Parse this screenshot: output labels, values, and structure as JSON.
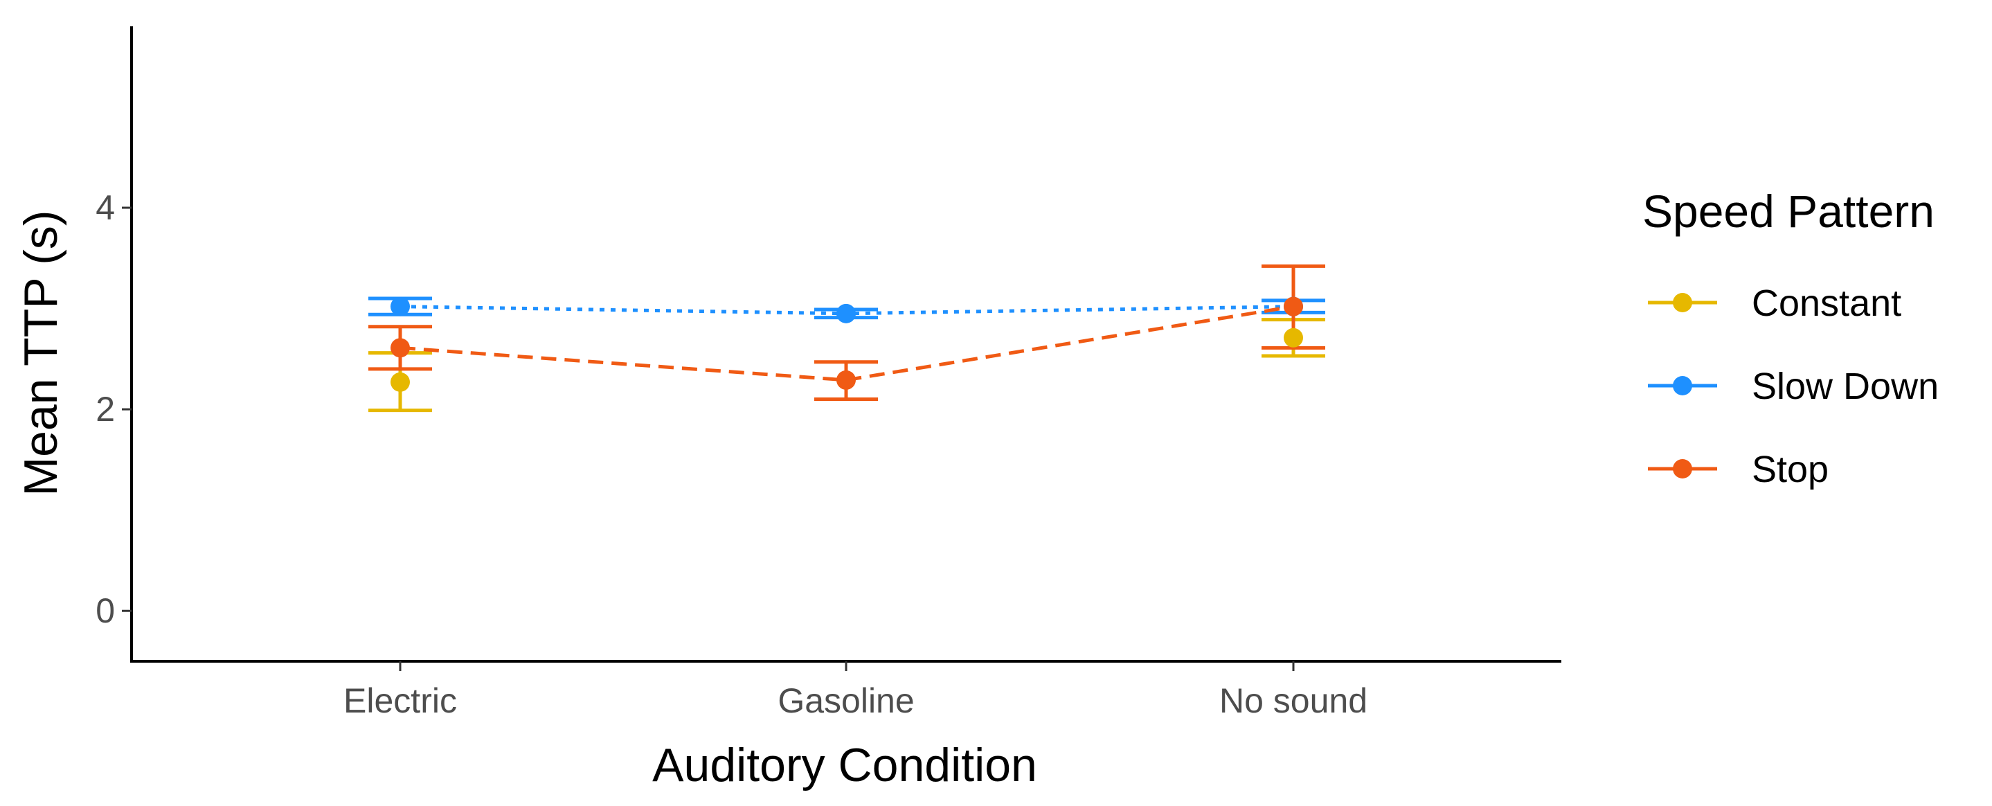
{
  "chart_data": {
    "type": "line",
    "title": "",
    "xlabel": "Auditory Condition",
    "ylabel": "Mean TTP (s)",
    "categories": [
      "Electric",
      "Gasoline",
      "No sound"
    ],
    "ylim": [
      -0.5,
      5.8
    ],
    "yticks": [
      0,
      2,
      4
    ],
    "grid": false,
    "legend": {
      "title": "Speed Pattern",
      "position": "right"
    },
    "series": [
      {
        "name": "Constant",
        "color": "#E6B800",
        "line": "none",
        "values": [
          2.27,
          null,
          2.71
        ],
        "errors": [
          [
            1.99,
            2.56
          ],
          null,
          [
            2.53,
            2.89
          ]
        ]
      },
      {
        "name": "Slow Down",
        "color": "#1E90FF",
        "line": "dotted",
        "values": [
          3.02,
          2.95,
          3.02
        ],
        "errors": [
          [
            2.94,
            3.1
          ],
          [
            2.91,
            2.99
          ],
          [
            2.96,
            3.08
          ]
        ]
      },
      {
        "name": "Stop",
        "color": "#F05A14",
        "line": "dashed",
        "values": [
          2.61,
          2.29,
          3.02
        ],
        "errors": [
          [
            2.4,
            2.82
          ],
          [
            2.1,
            2.47
          ],
          [
            2.61,
            3.42
          ]
        ]
      }
    ]
  }
}
